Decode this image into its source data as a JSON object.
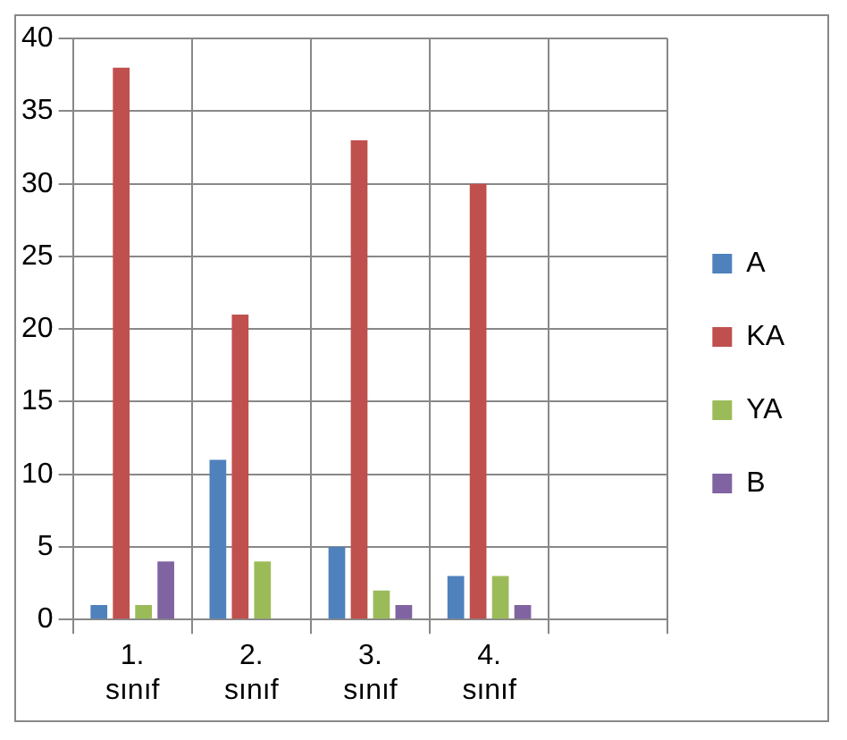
{
  "chart_data": {
    "type": "bar",
    "categories": [
      "1. sınıf",
      "2. sınıf",
      "3. sınıf",
      "4. sınıf",
      null
    ],
    "series": [
      {
        "name": "A",
        "color": "#4f81bd",
        "values": [
          1,
          11,
          5,
          3,
          null
        ]
      },
      {
        "name": "KA",
        "color": "#c0504d",
        "values": [
          38,
          21,
          33,
          30,
          null
        ]
      },
      {
        "name": "YA",
        "color": "#9bbb59",
        "values": [
          1,
          4,
          2,
          3,
          null
        ]
      },
      {
        "name": "B",
        "color": "#8064a2",
        "values": [
          4,
          0,
          1,
          1,
          null
        ]
      }
    ],
    "ylim": [
      0,
      40
    ],
    "yticks": [
      0,
      5,
      10,
      15,
      20,
      25,
      30,
      35,
      40
    ],
    "grid": true,
    "legend": "right"
  }
}
